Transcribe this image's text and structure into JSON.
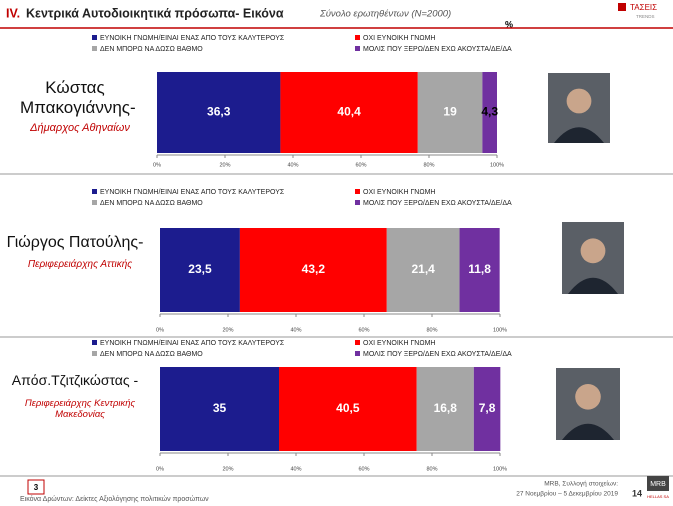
{
  "header": {
    "title_number": "IV.",
    "title": "Κεντρικά Αυτοδιοικητικά πρόσωπα- Εικόνα",
    "subtitle": "Σύνολο ερωτηθέντων (Ν=2000)",
    "unit": "%",
    "logo": "ΤΑΣΕΙΣ",
    "logo_sub": "TRENDS"
  },
  "chart_data": [
    {
      "type": "bar",
      "orientation": "horizontal",
      "stacked": true,
      "name": "Κώστας Μπακογιάννης-",
      "role": "Δήμαρχος Αθηναίων",
      "series": [
        {
          "name": "ΕΥΝΟΙΚΗ ΓΝΩΜΗ/ΕΙΝΑΙ ΕΝΑΣ ΑΠΟ ΤΟΥΣ ΚΑΛΥΤΕΡΟΥΣ",
          "color": "#1c1c8e",
          "values": [
            36.3
          ],
          "value_labels": [
            "36,3"
          ]
        },
        {
          "name": "ΟΧΙ ΕΥΝΟΙΚΗ ΓΝΩΜΗ",
          "color": "#ff0000",
          "values": [
            40.4
          ],
          "value_labels": [
            "40,4"
          ]
        },
        {
          "name": "ΔΕΝ ΜΠΟΡΩ ΝΑ ΔΩΣΩ ΒΑΘΜΟ",
          "color": "#a6a6a6",
          "values": [
            19
          ]
        },
        {
          "name": "ΜΟΛΙΣ ΠΟΥ ΞΕΡΩ/ΔΕΝ ΕΧΩ ΑΚΟΥΣΤΑ/ΔΕ/ΔΑ",
          "color": "#7030a0",
          "values": [
            4.3
          ],
          "value_labels": [
            "4,3"
          ]
        }
      ],
      "xlim": [
        0,
        100
      ],
      "xticks": [
        {
          "value": 0,
          "label": "0%"
        },
        {
          "value": 20,
          "label": "20%"
        },
        {
          "value": 40,
          "label": "40%"
        },
        {
          "value": 60,
          "label": "60%"
        },
        {
          "value": 80,
          "label": "80%"
        },
        {
          "value": 100,
          "label": "100%"
        }
      ]
    },
    {
      "type": "bar",
      "orientation": "horizontal",
      "stacked": true,
      "name": "Γιώργος Πατούλης-",
      "role": "Περιφερειάρχης Αττικής",
      "series": [
        {
          "name": "ΕΥΝΟΙΚΗ ΓΝΩΜΗ/ΕΙΝΑΙ ΕΝΑΣ ΑΠΟ ΤΟΥΣ ΚΑΛΥΤΕΡΟΥΣ",
          "color": "#1c1c8e",
          "values": [
            23.5
          ],
          "value_labels": [
            "23,5"
          ]
        },
        {
          "name": "ΟΧΙ ΕΥΝΟΙΚΗ ΓΝΩΜΗ",
          "color": "#ff0000",
          "values": [
            43.2
          ],
          "value_labels": [
            "43,2"
          ]
        },
        {
          "name": "ΔΕΝ ΜΠΟΡΩ ΝΑ ΔΩΣΩ ΒΑΘΜΟ",
          "color": "#a6a6a6",
          "values": [
            21.4
          ],
          "value_labels": [
            "21,4"
          ]
        },
        {
          "name": "ΜΟΛΙΣ ΠΟΥ ΞΕΡΩ/ΔΕΝ ΕΧΩ ΑΚΟΥΣΤΑ/ΔΕ/ΔΑ",
          "color": "#7030a0",
          "values": [
            11.8
          ],
          "value_labels": [
            "11,8"
          ]
        }
      ],
      "xlim": [
        0,
        100
      ],
      "xticks": [
        {
          "value": 0,
          "label": "0%"
        },
        {
          "value": 20,
          "label": "20%"
        },
        {
          "value": 40,
          "label": "40%"
        },
        {
          "value": 60,
          "label": "60%"
        },
        {
          "value": 80,
          "label": "80%"
        },
        {
          "value": 100,
          "label": "100%"
        }
      ]
    },
    {
      "type": "bar",
      "orientation": "horizontal",
      "stacked": true,
      "name": "Απόσ.Τζιτζικώστας -",
      "role": "Περιφερειάρχης Κεντρικής Μακεδονίας",
      "series": [
        {
          "name": "ΕΥΝΟΙΚΗ ΓΝΩΜΗ/ΕΙΝΑΙ ΕΝΑΣ ΑΠΟ ΤΟΥΣ ΚΑΛΥΤΕΡΟΥΣ",
          "color": "#1c1c8e",
          "values": [
            35
          ]
        },
        {
          "name": "ΟΧΙ ΕΥΝΟΙΚΗ ΓΝΩΜΗ",
          "color": "#ff0000",
          "values": [
            40.5
          ],
          "value_labels": [
            "40,5"
          ]
        },
        {
          "name": "ΔΕΝ ΜΠΟΡΩ ΝΑ ΔΩΣΩ ΒΑΘΜΟ",
          "color": "#a6a6a6",
          "values": [
            16.8
          ],
          "value_labels": [
            "16,8"
          ]
        },
        {
          "name": "ΜΟΛΙΣ ΠΟΥ ΞΕΡΩ/ΔΕΝ ΕΧΩ ΑΚΟΥΣΤΑ/ΔΕ/ΔΑ",
          "color": "#7030a0",
          "values": [
            7.8
          ],
          "value_labels": [
            "7,8"
          ]
        }
      ],
      "xlim": [
        0,
        100
      ],
      "xticks": [
        {
          "value": 0,
          "label": "0%"
        },
        {
          "value": 20,
          "label": "20%"
        },
        {
          "value": 40,
          "label": "40%"
        },
        {
          "value": 60,
          "label": "60%"
        },
        {
          "value": 80,
          "label": "80%"
        },
        {
          "value": 100,
          "label": "100%"
        }
      ]
    }
  ],
  "footer": {
    "page_box": "3",
    "caption": "Εικόνα Δρώντων: Δείκτες Αξιολόγησης πολιτικών προσώπων",
    "source": "MRB, Συλλογή στοιχείων:",
    "dates": "27 Νοεμβρίου – 5 Δεκεμβρίου 2019",
    "page": "14",
    "logo": "MRB",
    "logo_sub": "HELLAS SA"
  }
}
